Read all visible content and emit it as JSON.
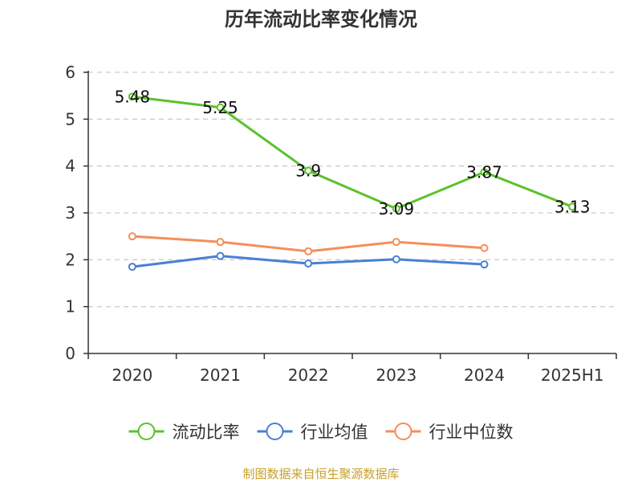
{
  "source": {
    "text": "制图数据来自恒生聚源数据库",
    "color": "#c8a02a"
  },
  "chart_data": {
    "type": "line",
    "title": "历年流动比率变化情况",
    "xlabel": "",
    "ylabel": "",
    "categories": [
      "2020",
      "2021",
      "2022",
      "2023",
      "2024",
      "2025H1"
    ],
    "ylim": [
      0,
      6
    ],
    "yticks": [
      0,
      1,
      2,
      3,
      4,
      5,
      6
    ],
    "grid": true,
    "legend_position": "bottom",
    "series": [
      {
        "name": "流动比率",
        "color": "#5cc12b",
        "values": [
          5.48,
          5.25,
          3.9,
          3.09,
          3.87,
          3.13
        ],
        "data_labels": [
          "5.48",
          "5.25",
          "3.9",
          "3.09",
          "3.87",
          "3.13"
        ]
      },
      {
        "name": "行业均值",
        "color": "#4a7fd6",
        "values": [
          1.85,
          2.08,
          1.92,
          2.01,
          1.9,
          null
        ]
      },
      {
        "name": "行业中位数",
        "color": "#f58e5a",
        "values": [
          2.5,
          2.38,
          2.18,
          2.38,
          2.25,
          null
        ]
      }
    ]
  }
}
